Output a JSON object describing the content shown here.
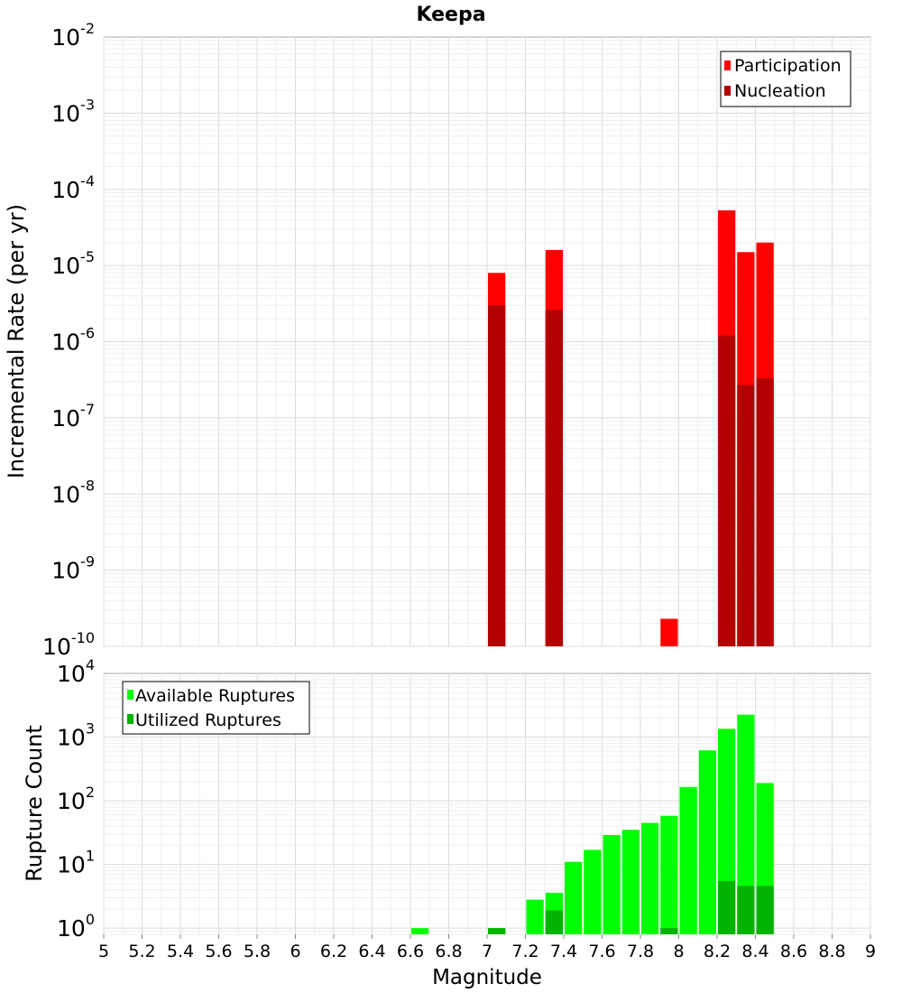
{
  "title": "Keepa",
  "x_axis_label": "Magnitude",
  "x_tick_labels": [
    "5",
    "5.2",
    "5.4",
    "5.6",
    "5.8",
    "6",
    "6.2",
    "6.4",
    "6.6",
    "6.8",
    "7",
    "7.2",
    "7.4",
    "7.6",
    "7.8",
    "8",
    "8.2",
    "8.4",
    "8.6",
    "8.8",
    "9"
  ],
  "chart_data": [
    {
      "type": "bar",
      "title": "Keepa",
      "ylabel": "Incremental Rate (per yr)",
      "xlabel": "Magnitude",
      "xlim": [
        5,
        9
      ],
      "yscale": "log",
      "ylim": [
        1e-10,
        0.01
      ],
      "y_tick_exponents": [
        -2,
        -3,
        -4,
        -5,
        -6,
        -7,
        -8,
        -9,
        -10
      ],
      "grid": true,
      "legend_position": "top-right",
      "bar_width": 0.1,
      "series": [
        {
          "name": "Participation",
          "color": "#ff0000",
          "points": [
            {
              "x": 7.05,
              "y": 8e-06
            },
            {
              "x": 7.35,
              "y": 1.6e-05
            },
            {
              "x": 7.95,
              "y": 2.3e-10
            },
            {
              "x": 8.25,
              "y": 5.3e-05
            },
            {
              "x": 8.35,
              "y": 1.5e-05
            },
            {
              "x": 8.45,
              "y": 2e-05
            }
          ]
        },
        {
          "name": "Nucleation",
          "color": "#b30000",
          "points": [
            {
              "x": 7.05,
              "y": 3e-06
            },
            {
              "x": 7.35,
              "y": 2.6e-06
            },
            {
              "x": 8.25,
              "y": 1.2e-06
            },
            {
              "x": 8.35,
              "y": 2.7e-07
            },
            {
              "x": 8.45,
              "y": 3.3e-07
            }
          ]
        }
      ]
    },
    {
      "type": "bar",
      "ylabel": "Rupture Count",
      "xlabel": "Magnitude",
      "xlim": [
        5,
        9
      ],
      "yscale": "log",
      "ylim": [
        0.8,
        10000
      ],
      "y_tick_exponents": [
        4,
        3,
        2,
        1,
        0
      ],
      "grid": true,
      "legend_position": "top-left",
      "bar_width": 0.1,
      "series": [
        {
          "name": "Available Ruptures",
          "color": "#00ff00",
          "points": [
            {
              "x": 6.65,
              "y": 1
            },
            {
              "x": 7.05,
              "y": 1
            },
            {
              "x": 7.25,
              "y": 2.8
            },
            {
              "x": 7.35,
              "y": 3.6
            },
            {
              "x": 7.45,
              "y": 11
            },
            {
              "x": 7.55,
              "y": 17
            },
            {
              "x": 7.65,
              "y": 29
            },
            {
              "x": 7.75,
              "y": 35
            },
            {
              "x": 7.85,
              "y": 45
            },
            {
              "x": 7.95,
              "y": 58
            },
            {
              "x": 8.05,
              "y": 165
            },
            {
              "x": 8.15,
              "y": 620
            },
            {
              "x": 8.25,
              "y": 1350
            },
            {
              "x": 8.35,
              "y": 2250
            },
            {
              "x": 8.45,
              "y": 190
            }
          ]
        },
        {
          "name": "Utilized Ruptures",
          "color": "#00b300",
          "points": [
            {
              "x": 7.05,
              "y": 1
            },
            {
              "x": 7.35,
              "y": 1.9
            },
            {
              "x": 7.95,
              "y": 1
            },
            {
              "x": 8.25,
              "y": 5.5
            },
            {
              "x": 8.35,
              "y": 4.6
            },
            {
              "x": 8.45,
              "y": 4.6
            }
          ]
        }
      ]
    }
  ]
}
